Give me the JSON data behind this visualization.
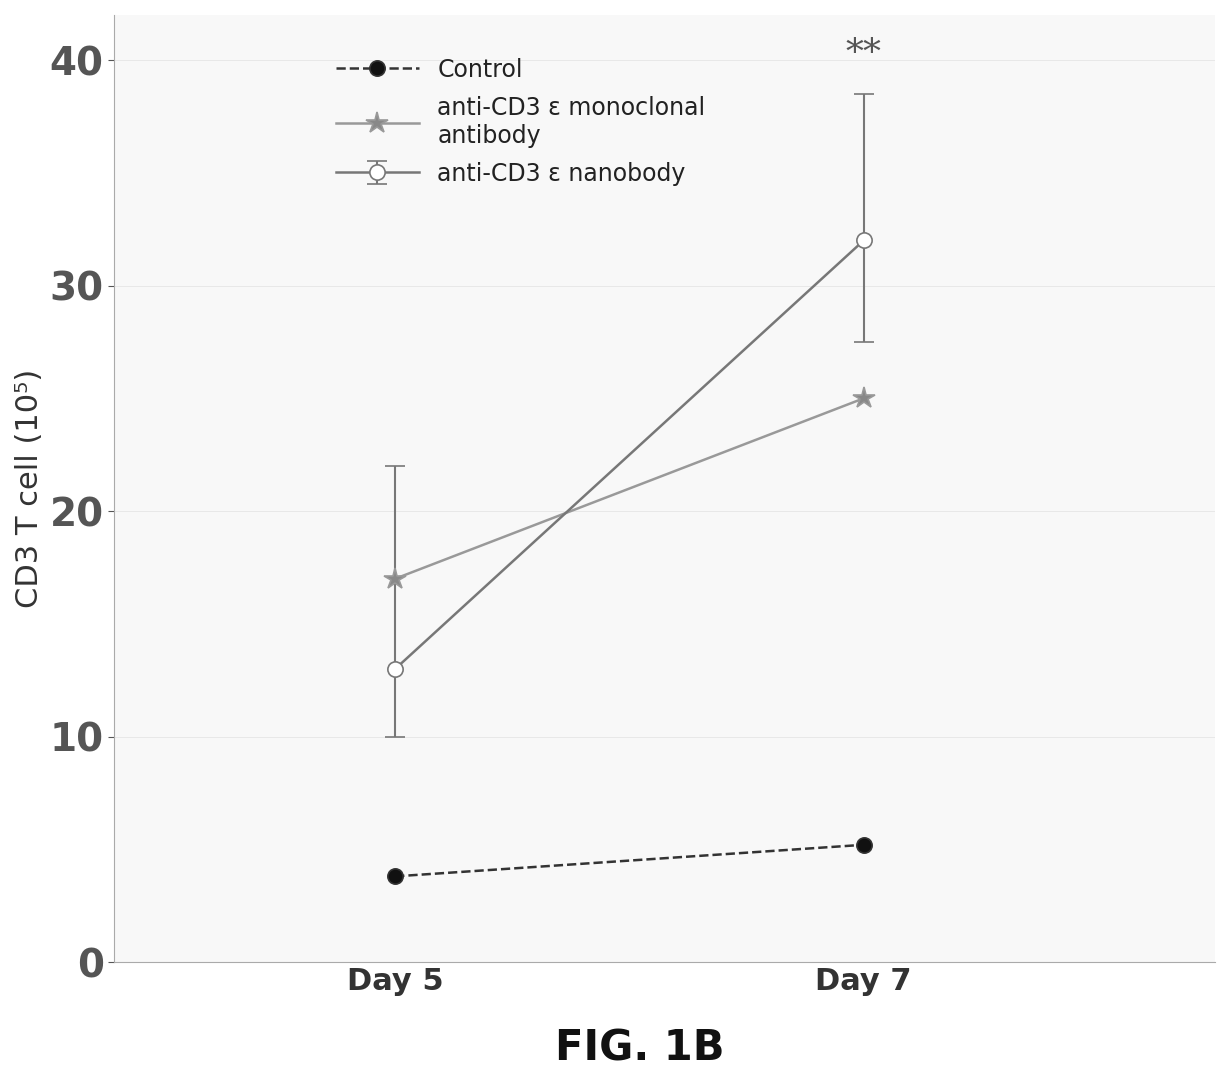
{
  "x_positions": [
    5,
    7
  ],
  "x_labels": [
    "Day 5",
    "Day 7"
  ],
  "x_range": [
    3.8,
    8.5
  ],
  "y_range": [
    0,
    42
  ],
  "y_ticks": [
    0,
    10,
    20,
    30,
    40
  ],
  "ylabel": "CD3 T cell (10⁵)",
  "fig_label": "FIG. 1B",
  "background_color": "#ffffff",
  "plot_bg_color": "#f8f8f8",
  "series": [
    {
      "label": "Control",
      "color": "#333333",
      "marker": "o",
      "marker_fill": "#111111",
      "linestyle": "--",
      "linewidth": 1.8,
      "markersize": 11,
      "values": [
        3.8,
        5.2
      ],
      "yerr_low": [
        0,
        0
      ],
      "yerr_high": [
        0,
        0
      ]
    },
    {
      "label": "anti-CD3 ε nanobody",
      "color": "#777777",
      "marker": "o",
      "marker_fill": "white",
      "linestyle": "-",
      "linewidth": 1.8,
      "markersize": 11,
      "values": [
        13.0,
        32.0
      ],
      "yerr_low": [
        3.0,
        4.5
      ],
      "yerr_high": [
        9.0,
        6.5
      ]
    },
    {
      "label": "anti-CD3 ε monoclonal\nantibody",
      "color": "#999999",
      "marker": "*",
      "marker_fill": "#888888",
      "linestyle": "-",
      "linewidth": 1.8,
      "markersize": 16,
      "values": [
        17.0,
        25.0
      ],
      "yerr_low": [
        0,
        0
      ],
      "yerr_high": [
        0,
        0
      ]
    }
  ],
  "significance_text": "**",
  "significance_x": 7.0,
  "significance_y": 39.5,
  "legend_fontsize": 17,
  "tick_fontsize": 28,
  "ylabel_fontsize": 22,
  "xlabel_fontsize": 22,
  "fig_label_fontsize": 30
}
